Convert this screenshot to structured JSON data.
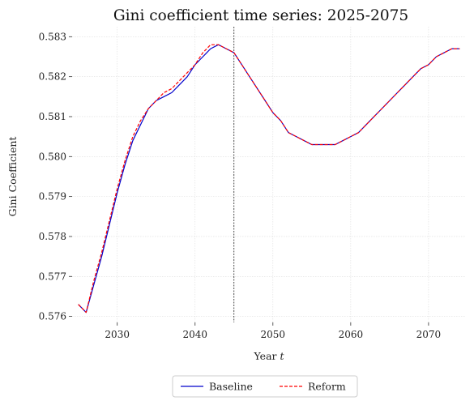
{
  "chart_data": {
    "type": "line",
    "title": "Gini coefficient time series: 2025-2075",
    "xlabel_prefix": "Year ",
    "xlabel_var": "t",
    "ylabel": "Gini Coefficient",
    "xlim": [
      2024.2,
      2074.8
    ],
    "ylim": [
      0.57585,
      0.58325
    ],
    "xticks": [
      2030,
      2040,
      2050,
      2060,
      2070
    ],
    "yticks": [
      0.576,
      0.577,
      0.578,
      0.579,
      0.58,
      0.581,
      0.582,
      0.583
    ],
    "grid": true,
    "vline_x": 2045,
    "legend_position": "bottom-center",
    "series": [
      {
        "name": "Baseline",
        "color": "#0000cc",
        "dash": "solid",
        "x": [
          2025,
          2026,
          2027,
          2028,
          2029,
          2030,
          2031,
          2032,
          2033,
          2034,
          2035,
          2036,
          2037,
          2038,
          2039,
          2040,
          2041,
          2042,
          2043,
          2044,
          2045,
          2046,
          2047,
          2048,
          2049,
          2050,
          2051,
          2052,
          2053,
          2054,
          2055,
          2056,
          2057,
          2058,
          2059,
          2060,
          2061,
          2062,
          2063,
          2064,
          2065,
          2066,
          2067,
          2068,
          2069,
          2070,
          2071,
          2072,
          2073,
          2074
        ],
        "values": [
          0.5763,
          0.5761,
          0.5768,
          0.5775,
          0.5783,
          0.5791,
          0.5798,
          0.5804,
          0.5808,
          0.5812,
          0.5814,
          0.5815,
          0.5816,
          0.5818,
          0.582,
          0.5823,
          0.5825,
          0.5827,
          0.5828,
          0.5827,
          0.5826,
          0.5823,
          0.582,
          0.5817,
          0.5814,
          0.5811,
          0.5809,
          0.5806,
          0.5805,
          0.5804,
          0.5803,
          0.5803,
          0.5803,
          0.5803,
          0.5804,
          0.5805,
          0.5806,
          0.5808,
          0.581,
          0.5812,
          0.5814,
          0.5816,
          0.5818,
          0.582,
          0.5822,
          0.5823,
          0.5825,
          0.5826,
          0.5827,
          0.5827
        ]
      },
      {
        "name": "Reform",
        "color": "#ff0000",
        "dash": "dashed",
        "x": [
          2025,
          2026,
          2027,
          2028,
          2029,
          2030,
          2031,
          2032,
          2033,
          2034,
          2035,
          2036,
          2037,
          2038,
          2039,
          2040,
          2041,
          2042,
          2043,
          2044,
          2045,
          2046,
          2047,
          2048,
          2049,
          2050,
          2051,
          2052,
          2053,
          2054,
          2055,
          2056,
          2057,
          2058,
          2059,
          2060,
          2061,
          2062,
          2063,
          2064,
          2065,
          2066,
          2067,
          2068,
          2069,
          2070,
          2071,
          2072,
          2073,
          2074
        ],
        "values": [
          0.5763,
          0.5761,
          0.5769,
          0.5776,
          0.5784,
          0.5792,
          0.5799,
          0.5805,
          0.5809,
          0.5812,
          0.5814,
          0.5816,
          0.5817,
          0.5819,
          0.5821,
          0.5823,
          0.5826,
          0.5828,
          0.5828,
          0.5827,
          0.5826,
          0.5823,
          0.582,
          0.5817,
          0.5814,
          0.5811,
          0.5809,
          0.5806,
          0.5805,
          0.5804,
          0.5803,
          0.5803,
          0.5803,
          0.5803,
          0.5804,
          0.5805,
          0.5806,
          0.5808,
          0.581,
          0.5812,
          0.5814,
          0.5816,
          0.5818,
          0.582,
          0.5822,
          0.5823,
          0.5825,
          0.5826,
          0.5827,
          0.5827
        ]
      }
    ]
  }
}
